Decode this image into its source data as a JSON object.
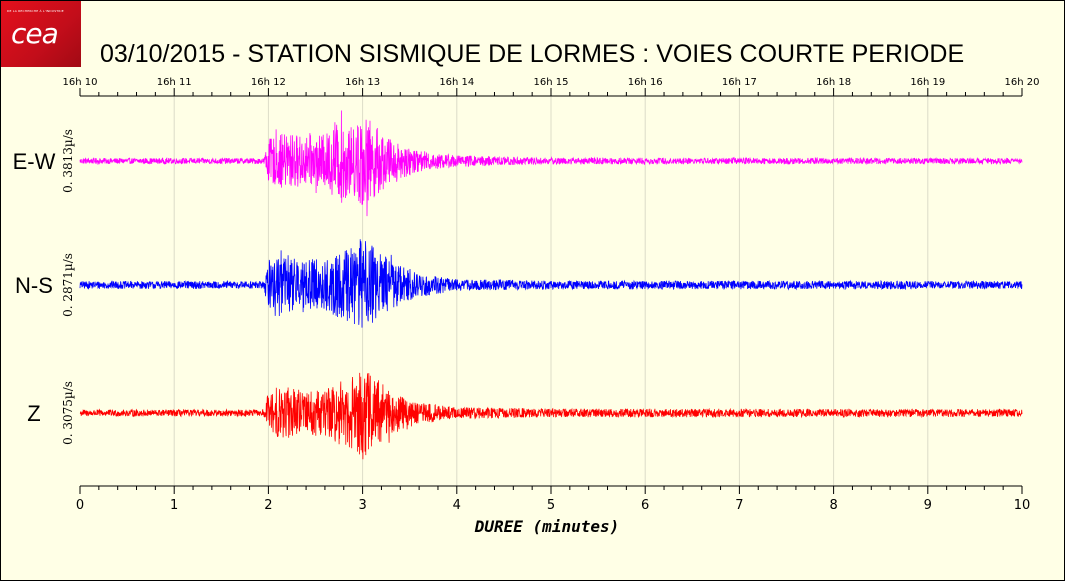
{
  "title": "03/10/2015  -  STATION SISMIQUE DE LORMES : VOIES COURTE PERIODE",
  "logo": {
    "text": "cea",
    "tagline": "DE LA RECHERCHE À L'INDUSTRIE"
  },
  "chart_data": {
    "type": "line",
    "title": "03/10/2015  -  STATION SISMIQUE DE LORMES : VOIES COURTE PERIODE",
    "xlabel": "DUREE (minutes)",
    "xlim": [
      0,
      10
    ],
    "x_ticks": [
      "0",
      "1",
      "2",
      "3",
      "4",
      "5",
      "6",
      "7",
      "8",
      "9",
      "10"
    ],
    "top_axis_ticks": [
      "16h 10",
      "16h 11",
      "16h 12",
      "16h 13",
      "16h 14",
      "16h 15",
      "16h 16",
      "16h 17",
      "16h 18",
      "16h 19",
      "16h 20"
    ],
    "grid": "vertical",
    "series": [
      {
        "name": "E-W",
        "color": "#ff00ff",
        "scale_label": "0. 3813µ/s",
        "noise": 0.06,
        "envelope_x": [
          0,
          1.95,
          2.0,
          2.2,
          2.4,
          2.6,
          2.75,
          2.9,
          3.0,
          3.1,
          3.3,
          3.6,
          4.0,
          5.0,
          10.0
        ],
        "envelope_y": [
          0.06,
          0.06,
          0.45,
          0.6,
          0.5,
          0.55,
          0.85,
          0.7,
          1.0,
          0.8,
          0.45,
          0.22,
          0.12,
          0.07,
          0.06
        ]
      },
      {
        "name": "N-S",
        "color": "#0000ff",
        "scale_label": "0. 2871µ/s",
        "noise": 0.08,
        "envelope_x": [
          0,
          1.95,
          2.0,
          2.2,
          2.4,
          2.6,
          2.75,
          2.9,
          3.0,
          3.1,
          3.3,
          3.6,
          4.0,
          5.0,
          10.0
        ],
        "envelope_y": [
          0.08,
          0.08,
          0.5,
          0.65,
          0.55,
          0.55,
          0.7,
          0.8,
          1.0,
          0.85,
          0.5,
          0.25,
          0.12,
          0.09,
          0.08
        ]
      },
      {
        "name": "Z",
        "color": "#ff0000",
        "scale_label": "0. 3075µ/s",
        "noise": 0.07,
        "envelope_x": [
          0,
          1.95,
          2.0,
          2.2,
          2.4,
          2.6,
          2.75,
          2.9,
          3.0,
          3.1,
          3.3,
          3.6,
          4.0,
          5.0,
          10.0
        ],
        "envelope_y": [
          0.07,
          0.07,
          0.45,
          0.55,
          0.45,
          0.5,
          0.65,
          0.75,
          1.0,
          0.8,
          0.45,
          0.22,
          0.12,
          0.09,
          0.08
        ]
      }
    ]
  }
}
